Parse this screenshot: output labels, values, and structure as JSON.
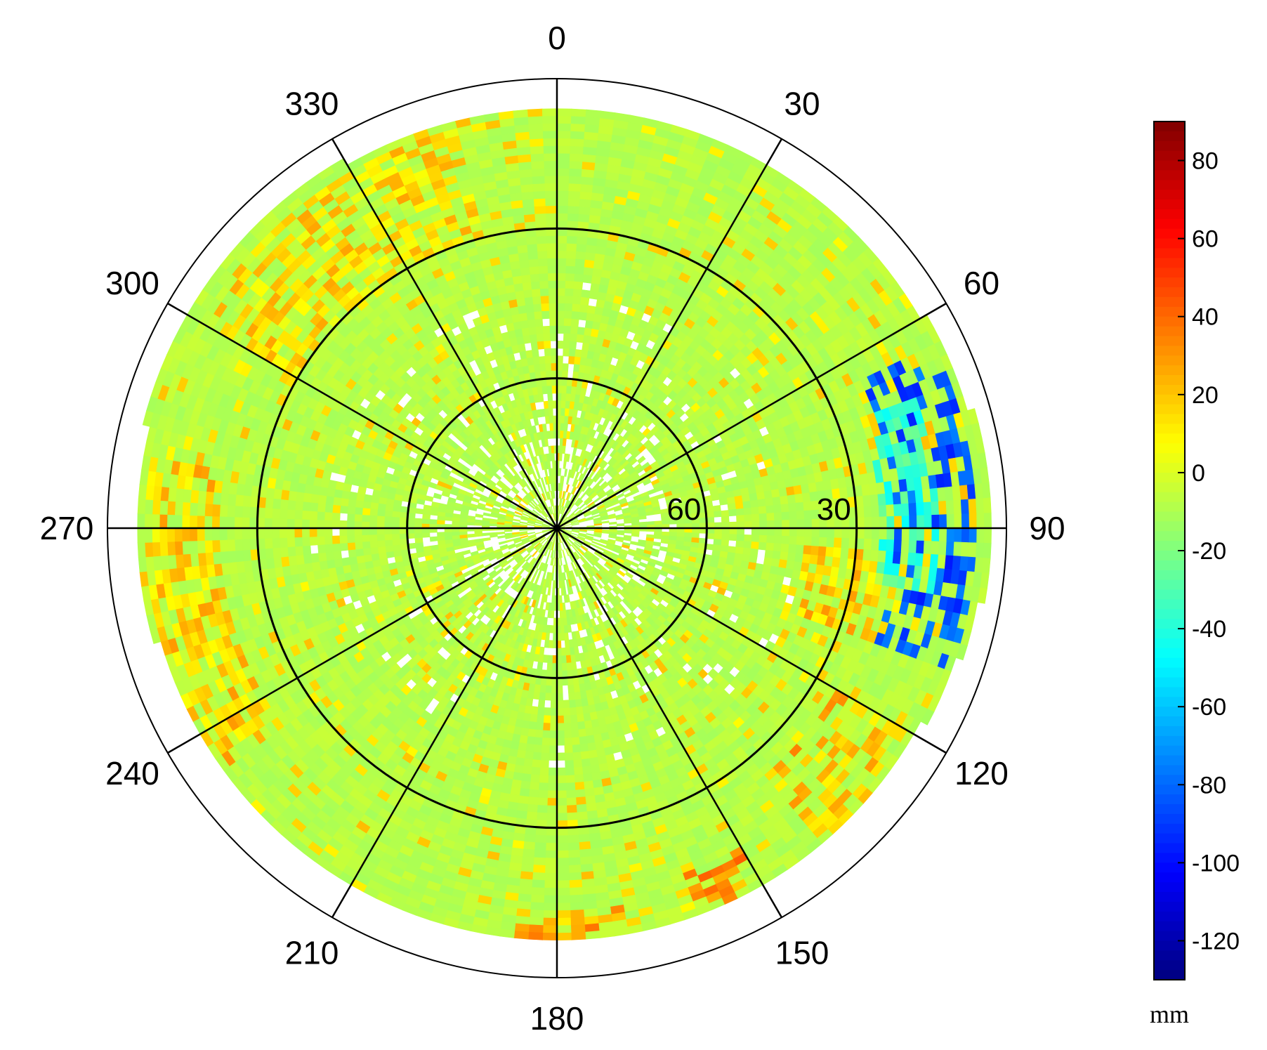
{
  "chart_data": {
    "type": "heatmap",
    "projection": "polar",
    "angle_direction": "clockwise",
    "angle_zero": "top",
    "angle_ticks": [
      "0",
      "30",
      "60",
      "90",
      "120",
      "150",
      "180",
      "210",
      "240",
      "270",
      "300",
      "330"
    ],
    "angle_tick_values": [
      0,
      30,
      60,
      90,
      120,
      150,
      180,
      210,
      240,
      270,
      300,
      330
    ],
    "radial_axis": "elevation",
    "radial_range": [
      90,
      0
    ],
    "radial_circles": [
      60,
      30
    ],
    "radial_tick_labels": [
      "60",
      "30"
    ],
    "coverage_edge_elevation": {
      "angles": [
        0,
        30,
        60,
        90,
        120,
        150,
        180,
        210,
        240,
        270,
        300,
        330
      ],
      "elevation": [
        7,
        7,
        6,
        3,
        8,
        9,
        9,
        9,
        8,
        7,
        5,
        6
      ]
    },
    "anomaly_regions": [
      {
        "azimuth_range": [
          65,
          110
        ],
        "elevation_range": [
          6,
          22
        ],
        "value": -85
      },
      {
        "azimuth_range": [
          70,
          100
        ],
        "elevation_range": [
          14,
          26
        ],
        "value": -35
      },
      {
        "azimuth_range": [
          95,
          110
        ],
        "elevation_range": [
          24,
          40
        ],
        "value": 18
      },
      {
        "azimuth_range": [
          120,
          140
        ],
        "elevation_range": [
          8,
          26
        ],
        "value": 22
      },
      {
        "azimuth_range": [
          150,
          160
        ],
        "elevation_range": [
          8,
          16
        ],
        "value": 30
      },
      {
        "azimuth_range": [
          235,
          280
        ],
        "elevation_range": [
          8,
          22
        ],
        "value": 18
      },
      {
        "azimuth_range": [
          300,
          345
        ],
        "elevation_range": [
          8,
          30
        ],
        "value": 15
      },
      {
        "azimuth_range": [
          170,
          185
        ],
        "elevation_range": [
          8,
          14
        ],
        "value": 25
      }
    ],
    "colorbar": {
      "min": -130,
      "max": 90,
      "ticks": [
        "80",
        "60",
        "40",
        "20",
        "0",
        "-20",
        "-40",
        "-60",
        "-80",
        "-100",
        "-120"
      ],
      "tick_values": [
        80,
        60,
        40,
        20,
        0,
        -20,
        -40,
        -60,
        -80,
        -100,
        -120
      ],
      "unit": "mm",
      "colormap": "jet"
    }
  },
  "colors": {
    "background": "#ffffff",
    "grid": "#000000",
    "empty": "#ffffff"
  }
}
